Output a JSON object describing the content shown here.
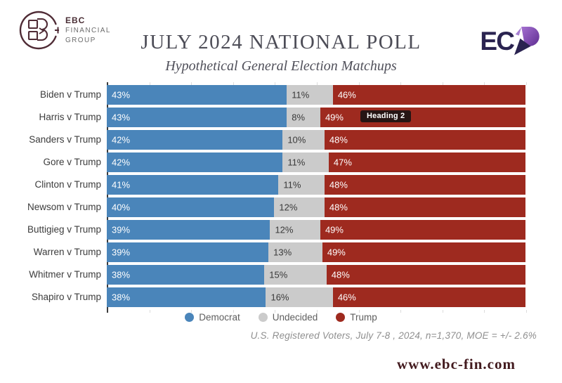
{
  "header": {
    "brand": {
      "name": "EBC",
      "line2": "FINANCIAL",
      "line3": "GROUP"
    },
    "title": "JULY 2024 NATIONAL POLL",
    "subtitle": "Hypothetical General Election Matchups",
    "partner_text": "EC"
  },
  "chart_data": {
    "type": "bar",
    "orientation": "horizontal",
    "stacked": true,
    "xlim": [
      0,
      100
    ],
    "value_suffix": "%",
    "grid": false,
    "legend_position": "bottom",
    "categories": [
      "Biden v Trump",
      "Harris v Trump",
      "Sanders v Trump",
      "Gore v Trump",
      "Clinton v Trump",
      "Newsom v Trump",
      "Buttigieg v Trump",
      "Warren v Trump",
      "Whitmer v Trump",
      "Shapiro v Trump"
    ],
    "series": [
      {
        "name": "Democrat",
        "color": "#4a85ba",
        "text_color": "#ffffff",
        "values": [
          43,
          43,
          42,
          42,
          41,
          40,
          39,
          39,
          38,
          38
        ]
      },
      {
        "name": "Undecided",
        "color": "#cbcbcb",
        "text_color": "#3a3a3a",
        "values": [
          11,
          8,
          10,
          11,
          11,
          12,
          12,
          13,
          15,
          16
        ]
      },
      {
        "name": "Trump",
        "color": "#9e2a1f",
        "text_color": "#ffffff",
        "values": [
          46,
          49,
          48,
          47,
          48,
          48,
          49,
          49,
          48,
          46
        ]
      }
    ]
  },
  "tooltip": {
    "label": "Heading 2"
  },
  "footnote": "U.S. Registered Voters, July 7-8 , 2024, n=1,370, MOE = +/- 2.6%",
  "website": "www.ebc-fin.com",
  "colors": {
    "democrat": "#4a85ba",
    "undecided": "#cbcbcb",
    "trump": "#9e2a1f",
    "brand_maroon": "#4f2b35",
    "partner_navy": "#2a2350",
    "partner_purple": "#7d3fa1"
  }
}
